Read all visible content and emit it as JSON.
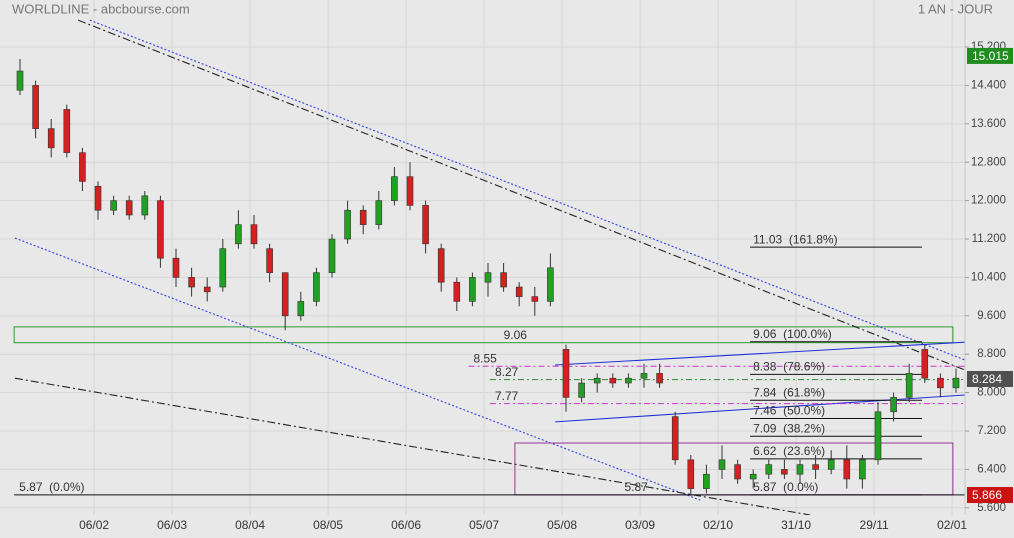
{
  "chart_data": {
    "type": "candlestick",
    "title": "WORLDLINE - abcbourse.com",
    "subtitle": "1 AN - JOUR",
    "up_color": "#22a022",
    "down_color": "#d42020",
    "x": [
      0,
      4,
      8,
      12,
      16,
      20,
      24,
      28,
      32,
      36,
      40,
      44,
      48,
      52,
      56,
      60,
      64,
      68,
      72,
      76,
      80,
      84,
      88,
      92,
      96,
      100,
      104,
      108,
      112,
      116,
      120,
      124,
      128,
      132,
      136,
      140,
      144,
      148,
      152,
      156,
      160,
      164,
      168,
      172,
      176,
      180,
      184,
      188,
      192,
      196,
      200,
      204,
      208,
      212,
      216,
      220,
      224,
      228,
      232,
      236,
      240
    ],
    "open": [
      14.3,
      14.4,
      13.5,
      13.9,
      13.0,
      12.3,
      11.8,
      12.0,
      11.7,
      12.0,
      10.8,
      10.4,
      10.2,
      10.2,
      11.1,
      11.5,
      11.0,
      10.5,
      9.6,
      9.9,
      10.5,
      11.2,
      11.8,
      11.5,
      12.0,
      12.5,
      11.9,
      11.0,
      10.3,
      9.9,
      10.3,
      10.5,
      10.2,
      10.0,
      9.9,
      8.9,
      7.9,
      8.2,
      8.3,
      8.2,
      8.3,
      8.4,
      7.5,
      6.6,
      6.0,
      6.4,
      6.5,
      6.2,
      6.3,
      6.4,
      6.3,
      6.5,
      6.4,
      6.6,
      6.2,
      6.6,
      7.6,
      7.9,
      8.9,
      8.3,
      8.1
    ],
    "high": [
      14.95,
      14.5,
      13.7,
      14.0,
      13.1,
      12.4,
      12.1,
      12.1,
      12.2,
      12.1,
      11.0,
      10.6,
      10.4,
      11.2,
      11.8,
      11.7,
      11.1,
      10.5,
      10.1,
      10.6,
      11.3,
      12.0,
      11.9,
      12.2,
      12.7,
      12.8,
      12.0,
      11.1,
      10.4,
      10.5,
      10.7,
      10.7,
      10.3,
      10.2,
      10.9,
      9.0,
      8.3,
      8.4,
      8.4,
      8.4,
      8.6,
      8.6,
      7.6,
      6.7,
      6.5,
      6.9,
      6.6,
      6.4,
      6.6,
      6.6,
      6.6,
      6.7,
      6.8,
      6.9,
      6.7,
      7.8,
      8.0,
      8.6,
      9.0,
      8.4,
      8.5
    ],
    "low": [
      14.2,
      13.3,
      12.9,
      12.9,
      12.2,
      11.6,
      11.7,
      11.6,
      11.6,
      10.6,
      10.2,
      10.0,
      9.9,
      10.1,
      11.0,
      11.0,
      10.3,
      9.3,
      9.5,
      9.8,
      10.4,
      11.1,
      11.3,
      11.4,
      11.9,
      11.8,
      10.9,
      10.1,
      9.7,
      9.8,
      10.0,
      10.1,
      9.8,
      9.6,
      9.8,
      7.6,
      7.8,
      8.0,
      8.1,
      8.1,
      8.1,
      8.1,
      6.5,
      5.85,
      5.9,
      6.2,
      6.1,
      6.0,
      6.2,
      6.2,
      6.1,
      6.2,
      6.3,
      6.0,
      6.0,
      6.5,
      7.4,
      7.8,
      8.2,
      7.9,
      8.0
    ],
    "close": [
      14.7,
      13.5,
      13.1,
      13.0,
      12.4,
      11.8,
      12.0,
      11.7,
      12.1,
      10.8,
      10.4,
      10.2,
      10.1,
      11.0,
      11.5,
      11.1,
      10.5,
      9.6,
      9.9,
      10.5,
      11.2,
      11.8,
      11.5,
      12.0,
      12.5,
      11.9,
      11.1,
      10.3,
      9.9,
      10.4,
      10.5,
      10.2,
      10.0,
      9.9,
      10.6,
      7.9,
      8.2,
      8.3,
      8.2,
      8.3,
      8.4,
      8.2,
      6.6,
      6.0,
      6.3,
      6.6,
      6.2,
      6.3,
      6.5,
      6.3,
      6.5,
      6.4,
      6.6,
      6.2,
      6.6,
      7.6,
      7.9,
      8.4,
      8.3,
      8.1,
      8.3
    ],
    "xlim": [
      -5.13,
      242.31
    ],
    "xticks": [
      {
        "value": 19,
        "label": "06/02"
      },
      {
        "value": 39,
        "label": "06/03"
      },
      {
        "value": 59,
        "label": "08/04"
      },
      {
        "value": 79,
        "label": "08/05"
      },
      {
        "value": 99,
        "label": "06/06"
      },
      {
        "value": 119,
        "label": "05/07"
      },
      {
        "value": 139,
        "label": "05/08"
      },
      {
        "value": 159,
        "label": "03/09"
      },
      {
        "value": 179,
        "label": "02/10"
      },
      {
        "value": 199,
        "label": "31/10"
      },
      {
        "value": 219,
        "label": "29/11"
      },
      {
        "value": 239,
        "label": "02/01"
      }
    ],
    "ylim": [
      5.45,
      16.18
    ],
    "yticks": [
      {
        "value": 15.2,
        "label": "15.200"
      },
      {
        "value": 14.4,
        "label": "14.400"
      },
      {
        "value": 13.6,
        "label": "13.600"
      },
      {
        "value": 12.8,
        "label": "12.800"
      },
      {
        "value": 12.0,
        "label": "12.000"
      },
      {
        "value": 11.2,
        "label": "11.200"
      },
      {
        "value": 10.4,
        "label": "10.400"
      },
      {
        "value": 9.6,
        "label": "9.600"
      },
      {
        "value": 8.8,
        "label": "8.800"
      },
      {
        "value": 8.0,
        "label": "8.000"
      },
      {
        "value": 7.2,
        "label": "7.200"
      },
      {
        "value": 6.4,
        "label": "6.400"
      },
      {
        "value": 5.6,
        "label": "5.600"
      }
    ],
    "grid": true,
    "trendlines": [
      {
        "points": [
          [
            14.9,
            15.76
          ],
          [
            242.3,
            8.47
          ]
        ],
        "color": "#222222",
        "dash": "8 3 2 3"
      },
      {
        "points": [
          [
            17.9,
            15.76
          ],
          [
            242.3,
            8.68
          ]
        ],
        "color": "#2f3fe0",
        "dash": "2 2"
      },
      {
        "points": [
          [
            -1.3,
            11.22
          ],
          [
            174.4,
            5.76
          ]
        ],
        "color": "#2f3fe0",
        "dash": "2 2"
      },
      {
        "points": [
          [
            -1.3,
            8.3
          ],
          [
            202.6,
            5.45
          ]
        ],
        "color": "#222222",
        "dash": "8 3 2 3"
      },
      {
        "points": [
          [
            137.2,
            8.575
          ],
          [
            242.3,
            9.05
          ]
        ],
        "color": "#2030d8",
        "dash": ""
      },
      {
        "points": [
          [
            137.2,
            7.39
          ],
          [
            242.3,
            7.95
          ]
        ],
        "color": "#2030d8",
        "dash": ""
      }
    ],
    "boxes": [
      {
        "x": [
          -1.5,
          239.2
        ],
        "y": [
          9.04,
          9.37
        ],
        "color": "#2e9a2e",
        "label": "9.06",
        "label_x": 124
      },
      {
        "x": [
          126.9,
          239.2
        ],
        "y": [
          5.87,
          6.95
        ],
        "color": "#993399",
        "label": "5.87",
        "label_x": 155
      }
    ],
    "hlines": [
      {
        "value": 8.55,
        "label": "8.55",
        "color": "#cc33cc",
        "dash": "6 3 2 3",
        "from": 115,
        "to": 242.31
      },
      {
        "value": 8.27,
        "label": "8.27",
        "color": "#2e8b2e",
        "dash": "6 3 2 3",
        "from": 120.5,
        "to": 242.31
      },
      {
        "value": 7.77,
        "label": "7.77",
        "color": "#cc33cc",
        "dash": "6 3 2 3",
        "from": 120.5,
        "to": 242.31
      },
      {
        "value": 5.87,
        "label": "5.87  (0.0%)",
        "color": "#111111",
        "dash": "",
        "from": -1.5,
        "to": 242.31
      }
    ],
    "fib_levels": [
      {
        "value": 11.03,
        "label": "11.03  (161.8%)"
      },
      {
        "value": 9.06,
        "label": "9.06  (100.0%)"
      },
      {
        "value": 8.38,
        "label": "8.38  (78.6%)"
      },
      {
        "value": 7.84,
        "label": "7.84  (61.8%)"
      },
      {
        "value": 7.46,
        "label": "7.46  (50.0%)"
      },
      {
        "value": 7.09,
        "label": "7.09  (38.2%)"
      },
      {
        "value": 6.62,
        "label": "6.62  (23.6%)"
      },
      {
        "value": 5.87,
        "label": "5.87  (0.0%)"
      }
    ],
    "fib_range": [
      187.2,
      231.3
    ],
    "price_tags": [
      {
        "value": 15.015,
        "color": "#1e8c1e"
      },
      {
        "value": 8.284,
        "color": "#505050"
      },
      {
        "value": 5.866,
        "color": "#cc1111"
      }
    ]
  }
}
